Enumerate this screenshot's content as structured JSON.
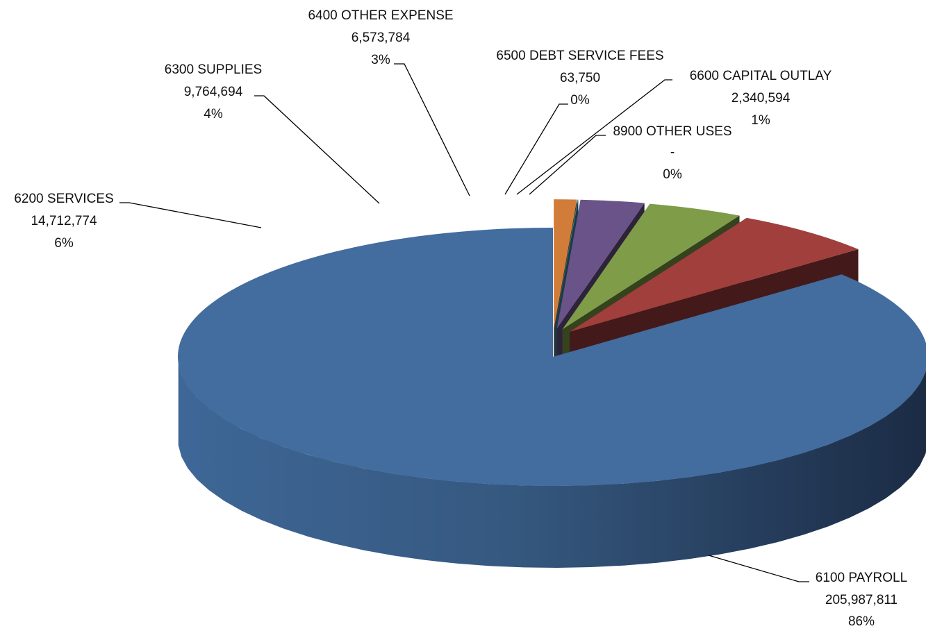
{
  "chart_data": {
    "type": "pie",
    "is_3d": true,
    "exploded": true,
    "legend": "none",
    "slices": [
      {
        "category": "6100 PAYROLL",
        "value_label": "205,987,811",
        "pct_label": "86%",
        "value": 205987811,
        "color": "#436c9f"
      },
      {
        "category": "6200 SERVICES",
        "value_label": "14,712,774",
        "pct_label": "6%",
        "value": 14712774,
        "color": "#a03f3c"
      },
      {
        "category": "6300 SUPPLIES",
        "value_label": "9,764,694",
        "pct_label": "4%",
        "value": 9764694,
        "color": "#7f9c48"
      },
      {
        "category": "6400 OTHER EXPENSE",
        "value_label": "6,573,784",
        "pct_label": "3%",
        "value": 6573784,
        "color": "#6a5389"
      },
      {
        "category": "6500 DEBT SERVICE FEES",
        "value_label": "63,750",
        "pct_label": "0%",
        "value": 63750,
        "color": "#3b8ea6"
      },
      {
        "category": "6600 CAPITAL OUTLAY",
        "value_label": "2,340,594",
        "pct_label": "1%",
        "value": 2340594,
        "color": "#d27c3a"
      },
      {
        "category": "8900 OTHER USES",
        "value_label": "-",
        "pct_label": "0%",
        "value": 0,
        "color": "#4f81bd"
      }
    ]
  }
}
